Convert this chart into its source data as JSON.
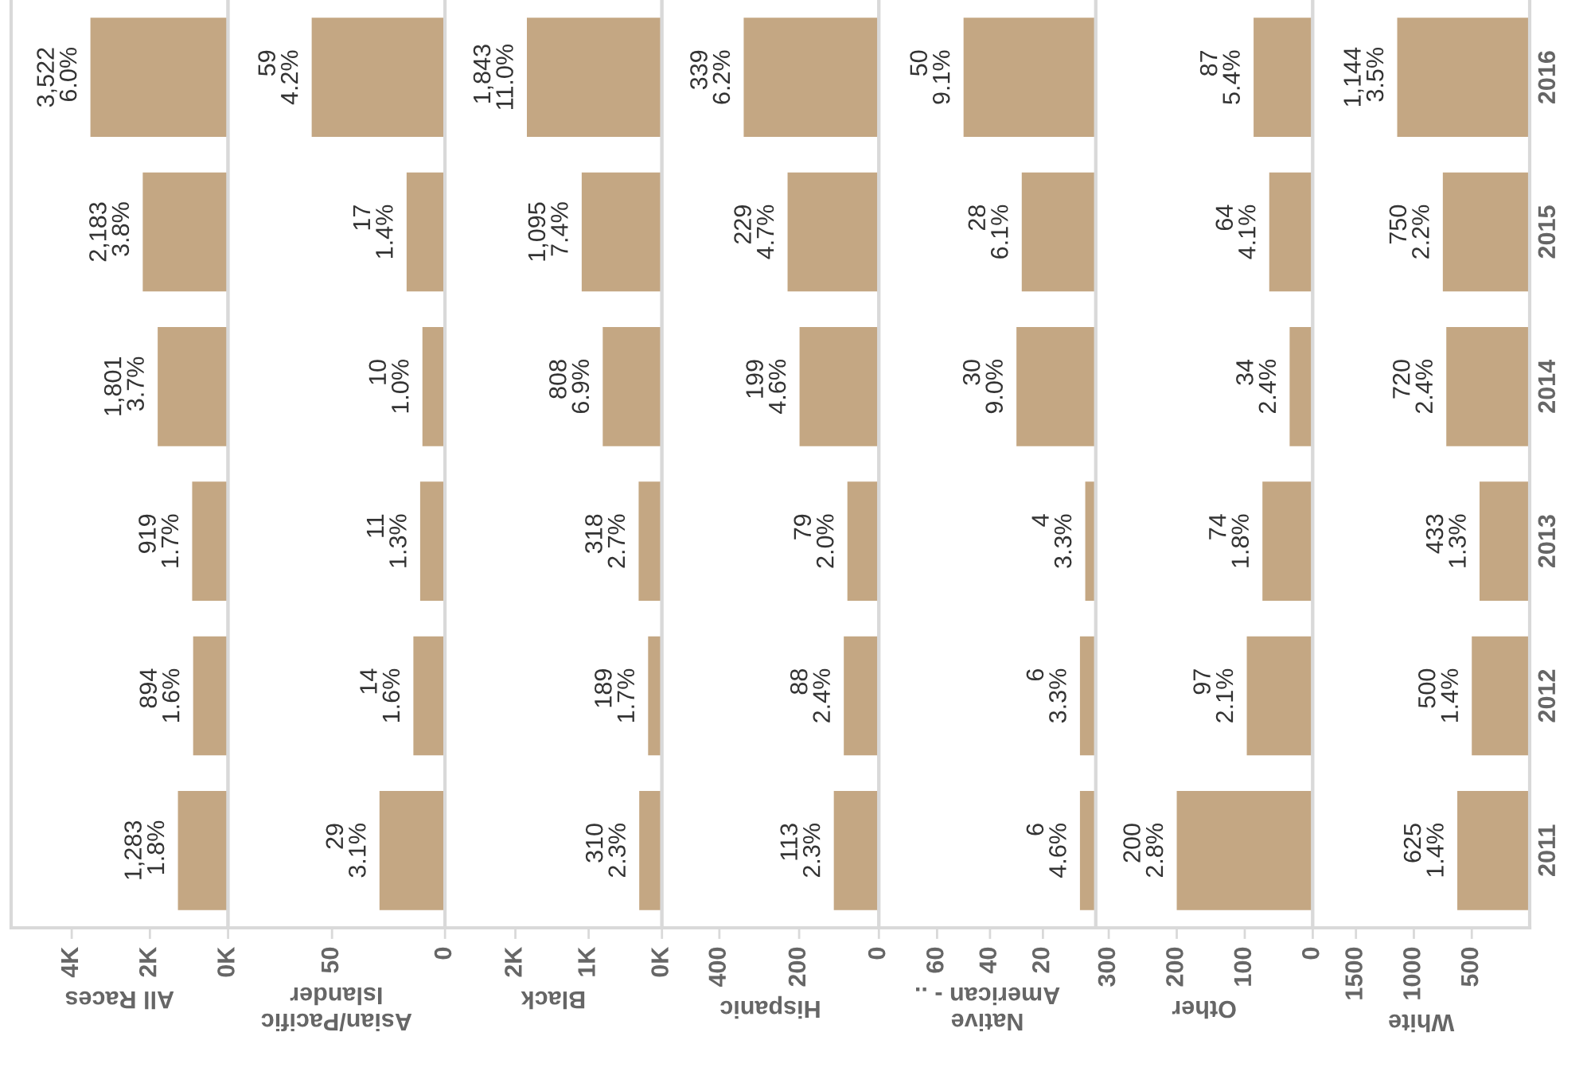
{
  "chart_data": [
    {
      "type": "bar",
      "orientation": "horizontal",
      "xlabel": "All Races",
      "categories": [
        "2016",
        "2015",
        "2014",
        "2013",
        "2012",
        "2011"
      ],
      "values": [
        3522,
        2183,
        1801,
        919,
        894,
        1283
      ],
      "value_labels": [
        "3,522\n6.0%",
        "2,183\n3.8%",
        "1,801\n3.7%",
        "919\n1.7%",
        "894\n1.6%",
        "1,283\n1.8%"
      ],
      "color": "#c4a783",
      "xlim": [
        5550,
        0
      ],
      "xticks": [
        {
          "value": 0,
          "label": "0K"
        },
        {
          "value": 2000,
          "label": "2K"
        },
        {
          "value": 4000,
          "label": "4K"
        }
      ],
      "tick_labels": "x"
    },
    {
      "type": "bar",
      "orientation": "horizontal",
      "xlabel": "Asian/Pacific\nIslander",
      "categories": [
        "2016",
        "2015",
        "2014",
        "2013",
        "2012",
        "2011"
      ],
      "values": [
        59,
        17,
        10,
        11,
        14,
        29
      ],
      "value_labels": [
        "59\n4.2%",
        "17\n1.4%",
        "10\n1.0%",
        "11\n1.3%",
        "14\n1.6%",
        "29\n3.1%"
      ],
      "color": "#c4a783",
      "xlim": [
        96,
        0
      ],
      "xticks": [
        0,
        50
      ],
      "tick_labels": "x"
    },
    {
      "type": "bar",
      "orientation": "horizontal",
      "xlabel": "Black",
      "categories": [
        "2016",
        "2015",
        "2014",
        "2013",
        "2012",
        "2011"
      ],
      "values": [
        1843,
        1095,
        808,
        318,
        189,
        310
      ],
      "value_labels": [
        "1,843\n11.0%",
        "1,095\n7.4%",
        "808\n6.9%",
        "318\n2.7%",
        "189\n1.7%",
        "310\n2.3%"
      ],
      "color": "#c4a783",
      "xlim": [
        2960,
        0
      ],
      "xticks": [
        {
          "value": 0,
          "label": "0K"
        },
        {
          "value": 1000,
          "label": "1K"
        },
        {
          "value": 2000,
          "label": "2K"
        }
      ],
      "tick_labels": "x"
    },
    {
      "type": "bar",
      "orientation": "horizontal",
      "xlabel": "Hispanic",
      "categories": [
        "2016",
        "2015",
        "2014",
        "2013",
        "2012",
        "2011"
      ],
      "values": [
        339,
        229,
        199,
        79,
        88,
        113
      ],
      "value_labels": [
        "339\n6.2%",
        "229\n4.7%",
        "199\n4.6%",
        "79\n2.0%",
        "88\n2.4%",
        "113\n2.3%"
      ],
      "color": "#c4a783",
      "xlim": [
        544,
        0
      ],
      "xticks": [
        0,
        200,
        400
      ],
      "tick_labels": "x"
    },
    {
      "type": "bar",
      "orientation": "horizontal",
      "xlabel": "Native\nAmerican - ..",
      "categories": [
        "2016",
        "2015",
        "2014",
        "2013",
        "2012",
        "2011"
      ],
      "values": [
        50,
        28,
        30,
        4,
        6,
        6
      ],
      "value_labels": [
        "50\n9.1%",
        "28\n6.1%",
        "30\n9.0%",
        "4\n3.3%",
        "6\n3.3%",
        "6\n4.6%"
      ],
      "color": "#c4a783",
      "xlim": [
        82,
        0
      ],
      "xticks": [
        20,
        40,
        60
      ],
      "tick_labels": "x"
    },
    {
      "type": "bar",
      "orientation": "horizontal",
      "xlabel": "Other",
      "categories": [
        "2016",
        "2015",
        "2014",
        "2013",
        "2012",
        "2011"
      ],
      "values": [
        87,
        64,
        34,
        74,
        97,
        200
      ],
      "value_labels": [
        "87\n5.4%",
        "64\n4.1%",
        "34\n2.4%",
        "74\n1.8%",
        "97\n2.1%",
        "200\n2.8%"
      ],
      "color": "#c4a783",
      "xlim": [
        319,
        0
      ],
      "xticks": [
        0,
        100,
        200,
        300
      ],
      "tick_labels": "x"
    },
    {
      "type": "bar",
      "orientation": "horizontal",
      "xlabel": "White",
      "categories": [
        "2016",
        "2015",
        "2014",
        "2013",
        "2012",
        "2011"
      ],
      "values": [
        1144,
        750,
        720,
        433,
        500,
        625
      ],
      "value_labels": [
        "1,144\n3.5%",
        "750\n2.2%",
        "720\n2.4%",
        "433\n1.3%",
        "500\n1.4%",
        "625\n1.4%"
      ],
      "color": "#c4a783",
      "xlim": [
        1873,
        0
      ],
      "xticks": [
        500,
        1000,
        1500
      ]
    }
  ]
}
